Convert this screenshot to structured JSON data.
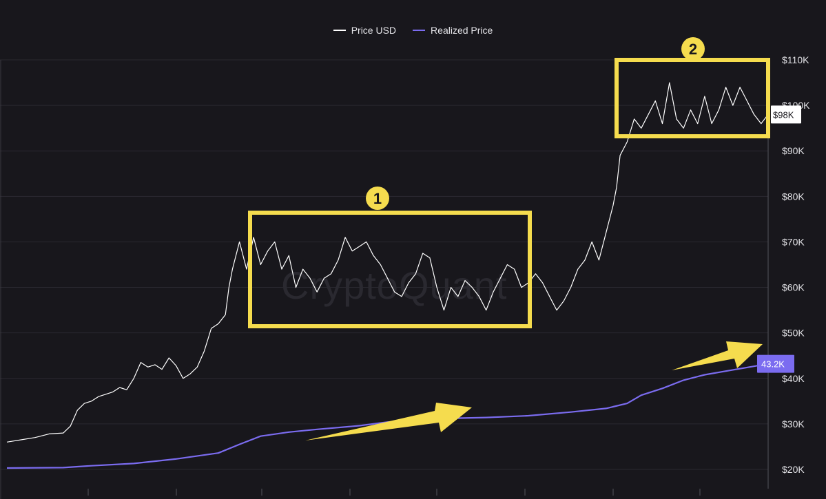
{
  "chart_data": {
    "type": "line",
    "title": "",
    "xlabel": "",
    "ylabel": "",
    "ylim": [
      20000,
      110000
    ],
    "y_ticks": [
      {
        "value": 110000,
        "label": "$110K"
      },
      {
        "value": 100000,
        "label": "$100K"
      },
      {
        "value": 90000,
        "label": "$90K"
      },
      {
        "value": 80000,
        "label": "$80K"
      },
      {
        "value": 70000,
        "label": "$70K"
      },
      {
        "value": 60000,
        "label": "$60K"
      },
      {
        "value": 50000,
        "label": "$50K"
      },
      {
        "value": 40000,
        "label": "$40K"
      },
      {
        "value": 30000,
        "label": "$30K"
      },
      {
        "value": 20000,
        "label": "$20K"
      }
    ],
    "grid": true,
    "legend": {
      "placement": "top-center",
      "entries": [
        "Price USD",
        "Realized Price"
      ]
    },
    "series": [
      {
        "name": "Price USD",
        "color": "#ffffff",
        "points": [
          [
            0,
            26000
          ],
          [
            2,
            26500
          ],
          [
            4,
            27000
          ],
          [
            6,
            27800
          ],
          [
            8,
            28000
          ],
          [
            9,
            29500
          ],
          [
            10,
            33000
          ],
          [
            11,
            34500
          ],
          [
            12,
            35000
          ],
          [
            13,
            36000
          ],
          [
            14,
            36500
          ],
          [
            15,
            37000
          ],
          [
            16,
            38000
          ],
          [
            17,
            37500
          ],
          [
            18,
            40000
          ],
          [
            19,
            43500
          ],
          [
            20,
            42500
          ],
          [
            21,
            43000
          ],
          [
            22,
            42000
          ],
          [
            23,
            44500
          ],
          [
            24,
            42800
          ],
          [
            25,
            40000
          ],
          [
            26,
            41000
          ],
          [
            27,
            42500
          ],
          [
            28,
            46000
          ],
          [
            29,
            51000
          ],
          [
            30,
            52000
          ],
          [
            31,
            54000
          ],
          [
            31.5,
            60000
          ],
          [
            32,
            64000
          ],
          [
            33,
            70000
          ],
          [
            34,
            64000
          ],
          [
            35,
            71000
          ],
          [
            36,
            65000
          ],
          [
            37,
            68000
          ],
          [
            38,
            70000
          ],
          [
            39,
            64000
          ],
          [
            40,
            67000
          ],
          [
            41,
            60000
          ],
          [
            42,
            64000
          ],
          [
            43,
            62000
          ],
          [
            44,
            59000
          ],
          [
            45,
            62000
          ],
          [
            46,
            63000
          ],
          [
            47,
            66000
          ],
          [
            48,
            71000
          ],
          [
            49,
            68000
          ],
          [
            50,
            69000
          ],
          [
            51,
            70000
          ],
          [
            52,
            67000
          ],
          [
            53,
            65000
          ],
          [
            54,
            62000
          ],
          [
            55,
            59000
          ],
          [
            56,
            58000
          ],
          [
            57,
            61000
          ],
          [
            58,
            63000
          ],
          [
            59,
            67500
          ],
          [
            60,
            66500
          ],
          [
            61,
            60000
          ],
          [
            62,
            55000
          ],
          [
            63,
            60000
          ],
          [
            64,
            58000
          ],
          [
            65,
            61500
          ],
          [
            66,
            60000
          ],
          [
            67,
            58000
          ],
          [
            68,
            55000
          ],
          [
            69,
            59000
          ],
          [
            70,
            62000
          ],
          [
            71,
            65000
          ],
          [
            72,
            64000
          ],
          [
            73,
            60000
          ],
          [
            74,
            61000
          ],
          [
            75,
            63000
          ],
          [
            76,
            61000
          ],
          [
            77,
            58000
          ],
          [
            78,
            55000
          ],
          [
            79,
            57000
          ],
          [
            80,
            60000
          ],
          [
            81,
            64000
          ],
          [
            82,
            66000
          ],
          [
            83,
            70000
          ],
          [
            84,
            66000
          ],
          [
            85,
            72000
          ],
          [
            86,
            78000
          ],
          [
            86.5,
            82000
          ],
          [
            87,
            89000
          ],
          [
            88,
            92000
          ],
          [
            89,
            97000
          ],
          [
            90,
            95000
          ],
          [
            91,
            98000
          ],
          [
            92,
            101000
          ],
          [
            93,
            96000
          ],
          [
            94,
            105000
          ],
          [
            95,
            97000
          ],
          [
            96,
            95000
          ],
          [
            97,
            99000
          ],
          [
            98,
            96000
          ],
          [
            99,
            102000
          ],
          [
            100,
            96000
          ],
          [
            101,
            99000
          ],
          [
            102,
            104000
          ],
          [
            103,
            100000
          ],
          [
            104,
            104000
          ],
          [
            105,
            101000
          ],
          [
            106,
            98000
          ],
          [
            107,
            96000
          ],
          [
            108,
            98000
          ]
        ],
        "last_value_label": "$98K"
      },
      {
        "name": "Realized Price",
        "color": "#7b6cf0",
        "points": [
          [
            0,
            20300
          ],
          [
            8,
            20400
          ],
          [
            12,
            20800
          ],
          [
            18,
            21300
          ],
          [
            24,
            22300
          ],
          [
            30,
            23600
          ],
          [
            33,
            25500
          ],
          [
            36,
            27300
          ],
          [
            40,
            28200
          ],
          [
            44,
            28800
          ],
          [
            50,
            29600
          ],
          [
            54,
            30400
          ],
          [
            58,
            30800
          ],
          [
            62,
            31200
          ],
          [
            68,
            31400
          ],
          [
            74,
            31800
          ],
          [
            80,
            32600
          ],
          [
            85,
            33400
          ],
          [
            88,
            34500
          ],
          [
            90,
            36300
          ],
          [
            93,
            37800
          ],
          [
            96,
            39600
          ],
          [
            99,
            40800
          ],
          [
            102,
            41600
          ],
          [
            105,
            42400
          ],
          [
            108,
            43200
          ]
        ],
        "last_value_label": "43.2K"
      }
    ],
    "annotations": [
      {
        "type": "box",
        "label": "1"
      },
      {
        "type": "box",
        "label": "2"
      },
      {
        "type": "arrow"
      },
      {
        "type": "arrow"
      }
    ]
  },
  "watermark": "CryptoQuant"
}
